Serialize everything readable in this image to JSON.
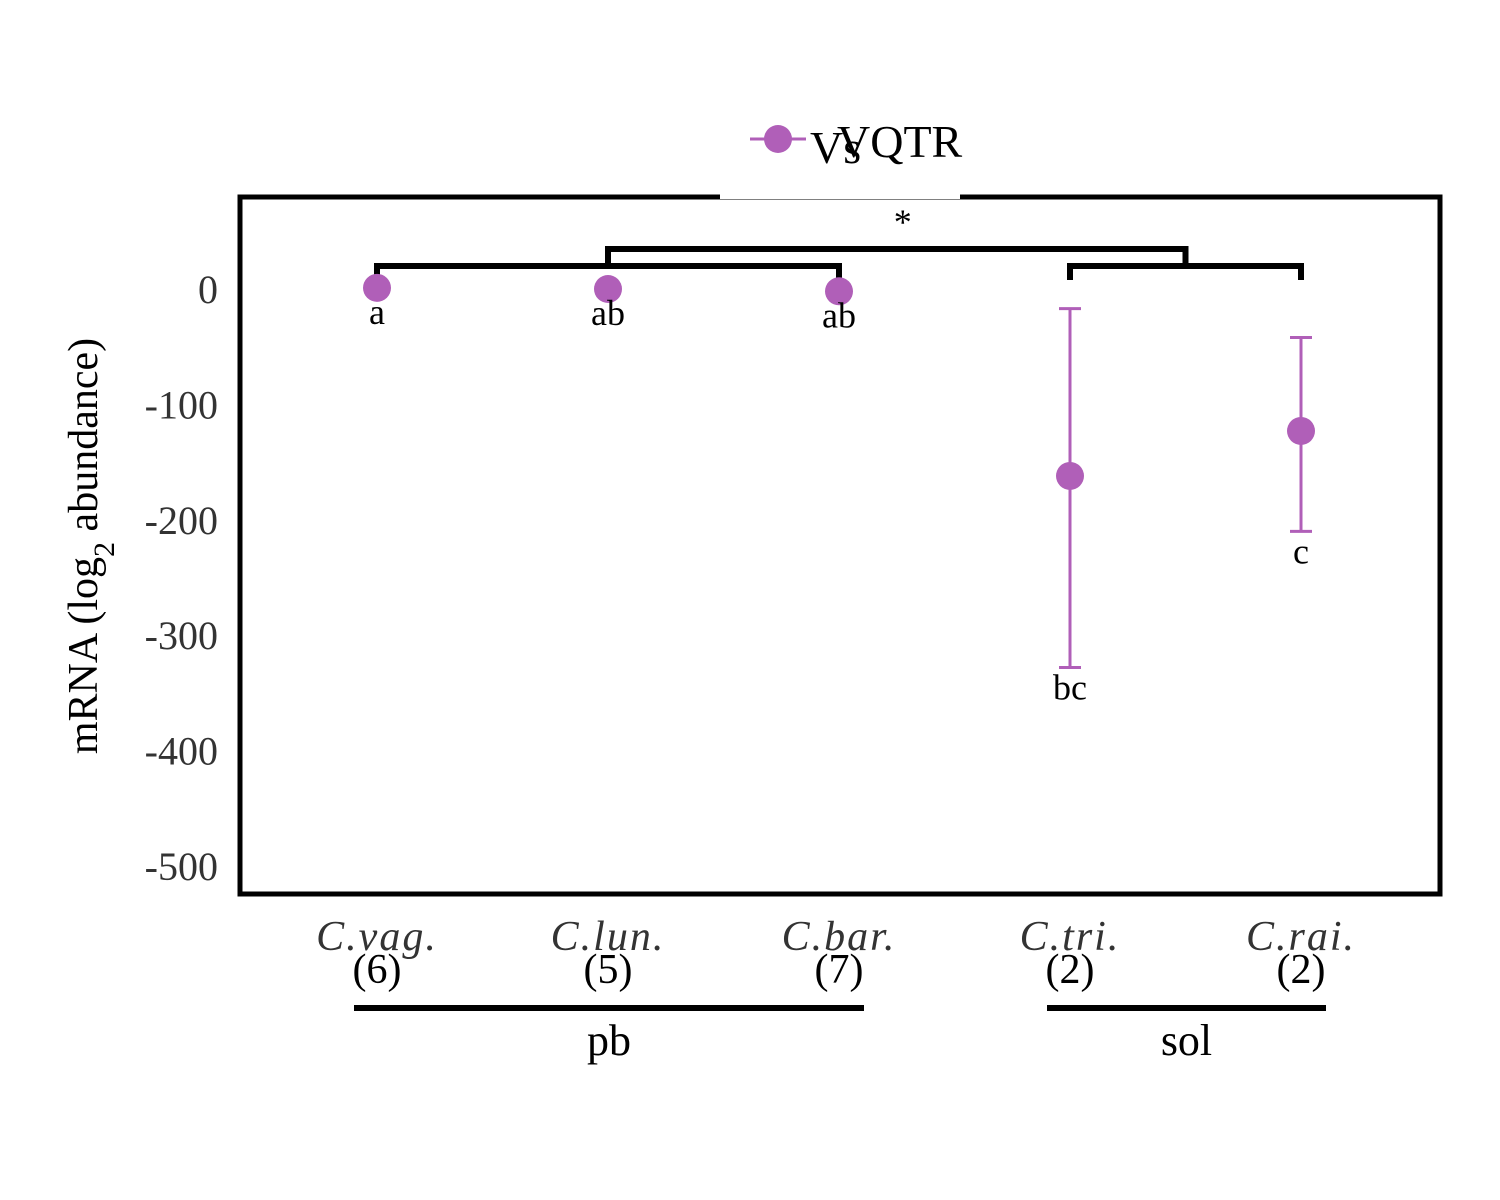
{
  "chart_data": {
    "type": "scatter",
    "ylabel_main": "mRNA (log",
    "ylabel_sub": "2",
    "ylabel_rest": " abundance)",
    "ylim": [
      -530,
      80
    ],
    "yticks": [
      0,
      -100,
      -200,
      -300,
      -400,
      -500
    ],
    "ytick_labels": [
      "0",
      "-100",
      "-200",
      "-300",
      "-400",
      "-500"
    ],
    "legend": {
      "label_main": "VQTR",
      "label_overlap": "Vs",
      "position": "top-center",
      "color": "#b05fb8"
    },
    "groups": [
      {
        "label": "C.vag.",
        "count": "(6)",
        "mean": 1,
        "err_low": null,
        "err_high": null,
        "letter": "a"
      },
      {
        "label": "C.lun.",
        "count": "(5)",
        "mean": 0,
        "err_low": null,
        "err_high": null,
        "letter": "ab"
      },
      {
        "label": "C.bar.",
        "count": "(7)",
        "mean": -2,
        "err_low": null,
        "err_high": null,
        "letter": "ab"
      },
      {
        "label": "C.tri.",
        "count": "(2)",
        "mean": -162,
        "err_low": -328,
        "err_high": -17,
        "letter": "bc"
      },
      {
        "label": "C.rai.",
        "count": "(2)",
        "mean": -123,
        "err_low": -210,
        "err_high": -42,
        "letter": "c"
      }
    ],
    "significance": "*",
    "classes": [
      {
        "label": "pb",
        "members": [
          0,
          1,
          2
        ]
      },
      {
        "label": "sol",
        "members": [
          3,
          4
        ]
      }
    ],
    "series_color": "#b05fb8"
  }
}
